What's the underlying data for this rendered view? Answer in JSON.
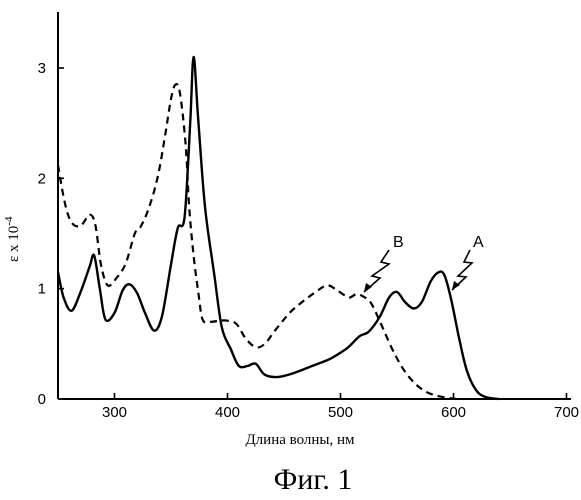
{
  "chart_data": {
    "type": "line",
    "xlabel": "Длина волны, нм",
    "ylabel_prefix": "ε x 10",
    "ylabel_exp": "-4",
    "caption": "Фиг. 1",
    "xlim": [
      250,
      700
    ],
    "ylim": [
      0,
      3.4
    ],
    "xticks": [
      300,
      400,
      500,
      600,
      700
    ],
    "yticks": [
      0,
      1,
      2,
      3
    ],
    "grid": false,
    "series": [
      {
        "name": "A",
        "style": "solid",
        "x": [
          250,
          255,
          262,
          270,
          278,
          282,
          287,
          292,
          300,
          307,
          313,
          320,
          327,
          335,
          342,
          350,
          356,
          362,
          367,
          370,
          374,
          380,
          388,
          395,
          403,
          410,
          418,
          425,
          433,
          445,
          460,
          475,
          490,
          500,
          507,
          517,
          525,
          535,
          543,
          550,
          557,
          565,
          572,
          580,
          587,
          592,
          598,
          605,
          612,
          620,
          628,
          640
        ],
        "y": [
          1.15,
          0.92,
          0.8,
          0.97,
          1.2,
          1.3,
          1.0,
          0.72,
          0.78,
          0.98,
          1.04,
          0.96,
          0.78,
          0.62,
          0.75,
          1.22,
          1.55,
          1.65,
          2.5,
          3.1,
          2.55,
          1.75,
          1.15,
          0.65,
          0.45,
          0.3,
          0.3,
          0.32,
          0.22,
          0.2,
          0.24,
          0.3,
          0.36,
          0.42,
          0.47,
          0.57,
          0.61,
          0.75,
          0.92,
          0.97,
          0.88,
          0.82,
          0.88,
          1.07,
          1.15,
          1.12,
          0.9,
          0.55,
          0.25,
          0.08,
          0.02,
          0.0
        ]
      },
      {
        "name": "B",
        "style": "dashed",
        "x": [
          250,
          256,
          262,
          270,
          278,
          283,
          288,
          294,
          302,
          310,
          318,
          323,
          330,
          338,
          345,
          350,
          354,
          358,
          363,
          366,
          370,
          374,
          378,
          385,
          393,
          400,
          408,
          416,
          425,
          433,
          442,
          455,
          465,
          478,
          488,
          495,
          502,
          508,
          514,
          520,
          527,
          535,
          545,
          555,
          565,
          575,
          585,
          595,
          602
        ],
        "y": [
          2.12,
          1.78,
          1.6,
          1.57,
          1.67,
          1.58,
          1.22,
          1.03,
          1.1,
          1.23,
          1.5,
          1.56,
          1.72,
          2.0,
          2.4,
          2.72,
          2.85,
          2.77,
          2.3,
          1.75,
          1.3,
          0.98,
          0.72,
          0.7,
          0.71,
          0.71,
          0.68,
          0.55,
          0.47,
          0.5,
          0.62,
          0.78,
          0.87,
          0.97,
          1.03,
          1.0,
          0.95,
          0.92,
          0.95,
          0.93,
          0.87,
          0.7,
          0.47,
          0.28,
          0.15,
          0.07,
          0.03,
          0.01,
          0.0
        ]
      }
    ]
  }
}
